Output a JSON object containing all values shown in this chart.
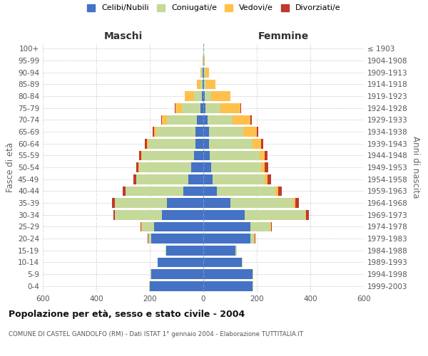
{
  "age_groups": [
    "0-4",
    "5-9",
    "10-14",
    "15-19",
    "20-24",
    "25-29",
    "30-34",
    "35-39",
    "40-44",
    "45-49",
    "50-54",
    "55-59",
    "60-64",
    "65-69",
    "70-74",
    "75-79",
    "80-84",
    "85-89",
    "90-94",
    "95-99",
    "100+"
  ],
  "birth_years": [
    "1999-2003",
    "1994-1998",
    "1989-1993",
    "1984-1988",
    "1979-1983",
    "1974-1978",
    "1969-1973",
    "1964-1968",
    "1959-1963",
    "1954-1958",
    "1949-1953",
    "1944-1948",
    "1939-1943",
    "1934-1938",
    "1929-1933",
    "1924-1928",
    "1919-1923",
    "1914-1918",
    "1909-1913",
    "1904-1908",
    "≤ 1903"
  ],
  "males": {
    "celibi": [
      200,
      195,
      170,
      140,
      195,
      185,
      155,
      135,
      75,
      55,
      45,
      35,
      30,
      30,
      25,
      10,
      5,
      2,
      2,
      1,
      1
    ],
    "coniugati": [
      2,
      2,
      2,
      2,
      10,
      45,
      175,
      195,
      215,
      195,
      195,
      195,
      175,
      145,
      110,
      70,
      30,
      8,
      5,
      2,
      0
    ],
    "vedovi": [
      0,
      0,
      0,
      0,
      0,
      2,
      2,
      2,
      2,
      2,
      2,
      2,
      5,
      10,
      20,
      25,
      35,
      15,
      5,
      1,
      0
    ],
    "divorziati": [
      0,
      0,
      0,
      0,
      2,
      2,
      5,
      10,
      10,
      10,
      10,
      8,
      8,
      5,
      2,
      2,
      0,
      0,
      0,
      0,
      0
    ]
  },
  "females": {
    "nubili": [
      185,
      185,
      145,
      120,
      175,
      175,
      155,
      100,
      50,
      35,
      30,
      25,
      20,
      20,
      15,
      8,
      5,
      2,
      2,
      1,
      1
    ],
    "coniugate": [
      2,
      2,
      2,
      5,
      15,
      75,
      225,
      235,
      220,
      195,
      185,
      185,
      165,
      130,
      95,
      55,
      25,
      8,
      5,
      2,
      0
    ],
    "vedove": [
      0,
      0,
      0,
      0,
      2,
      2,
      5,
      8,
      10,
      10,
      15,
      20,
      30,
      50,
      65,
      75,
      70,
      35,
      15,
      2,
      0
    ],
    "divorziate": [
      0,
      0,
      0,
      0,
      2,
      5,
      10,
      15,
      12,
      12,
      12,
      10,
      8,
      5,
      5,
      2,
      2,
      0,
      0,
      0,
      0
    ]
  },
  "colors": {
    "celibi": "#4472c4",
    "coniugati": "#c5d99a",
    "vedovi": "#ffc04c",
    "divorziati": "#c0392b"
  },
  "legend_labels": [
    "Celibi/Nubili",
    "Coniugati/e",
    "Vedovi/e",
    "Divorziati/e"
  ],
  "xlabel_left": "Maschi",
  "xlabel_right": "Femmine",
  "ylabel_left": "Fasce di età",
  "ylabel_right": "Anni di nascita",
  "title": "Popolazione per età, sesso e stato civile - 2004",
  "subtitle": "COMUNE DI CASTEL GANDOLFO (RM) - Dati ISTAT 1° gennaio 2004 - Elaborazione TUTTITALIA.IT",
  "xlim": 600,
  "bg_color": "#ffffff",
  "grid_color": "#cccccc"
}
